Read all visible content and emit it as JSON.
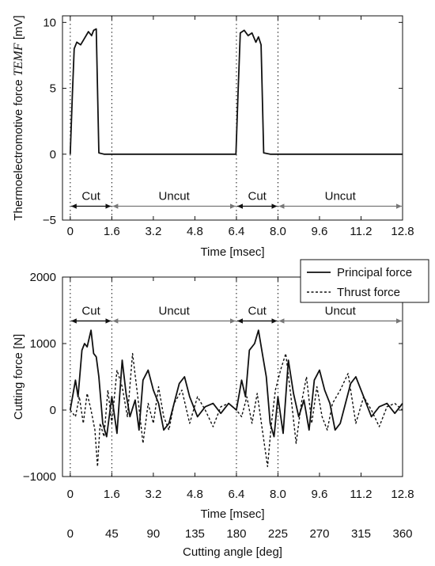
{
  "chart_data": [
    {
      "type": "line",
      "ylabel": "Thermoelectromotive force TEMF [mV]",
      "ylabel_prefix": "Thermoelectromotive force ",
      "ylabel_symbol": "TEMF",
      "ylabel_suffix": " [mV]",
      "xlabel": "Time [msec]",
      "xlim": [
        -0.3,
        12.8
      ],
      "ylim": [
        -5,
        10.5
      ],
      "xticks": [
        "0",
        "1.6",
        "3.2",
        "4.8",
        "6.4",
        "8.0",
        "9.6",
        "11.2",
        "12.8"
      ],
      "xtick_values": [
        0,
        1.6,
        3.2,
        4.8,
        6.4,
        8.0,
        9.6,
        11.2,
        12.8
      ],
      "yticks": [
        "−5",
        "0",
        "5",
        "10"
      ],
      "ytick_values": [
        -5,
        0,
        5,
        10
      ],
      "grid": false,
      "series": [
        {
          "x": [
            0,
            0.08,
            0.15,
            0.25,
            0.4,
            0.55,
            0.7,
            0.82,
            0.9,
            1.0,
            1.1,
            1.3,
            1.6,
            3.2,
            4.8,
            6.3,
            6.38,
            6.46,
            6.55,
            6.7,
            6.85,
            7.0,
            7.15,
            7.25,
            7.35,
            7.45,
            7.7,
            8.0,
            9.6,
            11.2,
            12.8
          ],
          "y": [
            0,
            4.5,
            8.0,
            8.5,
            8.3,
            8.8,
            9.3,
            9.0,
            9.4,
            9.5,
            0.1,
            0,
            0,
            0,
            0,
            0,
            0,
            4.5,
            9.2,
            9.4,
            9.0,
            9.2,
            8.5,
            8.9,
            8.3,
            0.1,
            0,
            0,
            0,
            0,
            0
          ]
        }
      ],
      "vlines": [
        0,
        1.6,
        6.4,
        8.0
      ],
      "annotations": [
        {
          "label": "Cut",
          "from": 0,
          "to": 1.6,
          "style": "black"
        },
        {
          "label": "Uncut",
          "from": 1.6,
          "to": 6.4,
          "style": "gray"
        },
        {
          "label": "Cut",
          "from": 6.4,
          "to": 8.0,
          "style": "black"
        },
        {
          "label": "Uncut",
          "from": 8.0,
          "to": 12.8,
          "style": "gray"
        }
      ],
      "annotation_y": -3.95
    },
    {
      "type": "line",
      "ylabel": "Cutting force  [N]",
      "xlabel": "Time [msec]",
      "x2label": "Cutting angle [deg]",
      "xlim": [
        -0.3,
        12.8
      ],
      "ylim": [
        -1000,
        2000
      ],
      "xticks": [
        "0",
        "1.6",
        "3.2",
        "4.8",
        "6.4",
        "8.0",
        "9.6",
        "11.2",
        "12.8"
      ],
      "xtick_values": [
        0,
        1.6,
        3.2,
        4.8,
        6.4,
        8.0,
        9.6,
        11.2,
        12.8
      ],
      "x2ticks": [
        "0",
        "45",
        "90",
        "135",
        "180",
        "225",
        "270",
        "315",
        "360"
      ],
      "yticks": [
        "−1000",
        "0",
        "1000",
        "2000"
      ],
      "ytick_values": [
        -1000,
        0,
        1000,
        2000
      ],
      "grid": false,
      "legend_position": "top-right",
      "series": [
        {
          "name": "Principal force",
          "dash": "solid",
          "x": [
            0,
            0.2,
            0.3,
            0.45,
            0.55,
            0.65,
            0.8,
            0.9,
            1.0,
            1.1,
            1.25,
            1.4,
            1.6,
            1.8,
            2.0,
            2.15,
            2.3,
            2.5,
            2.65,
            2.8,
            3.0,
            3.2,
            3.4,
            3.6,
            3.8,
            4.0,
            4.2,
            4.4,
            4.6,
            4.9,
            5.2,
            5.5,
            5.8,
            6.1,
            6.4,
            6.6,
            6.75,
            6.9,
            7.1,
            7.25,
            7.4,
            7.55,
            7.7,
            7.85,
            8.0,
            8.2,
            8.4,
            8.6,
            8.8,
            9.0,
            9.2,
            9.4,
            9.6,
            9.8,
            10.0,
            10.2,
            10.4,
            10.6,
            10.8,
            11.0,
            11.3,
            11.6,
            11.9,
            12.2,
            12.5,
            12.8
          ],
          "y": [
            0,
            450,
            200,
            900,
            1000,
            950,
            1200,
            850,
            800,
            500,
            -200,
            -400,
            200,
            -350,
            750,
            250,
            -100,
            150,
            -300,
            450,
            600,
            300,
            100,
            -300,
            -200,
            100,
            400,
            500,
            200,
            -100,
            50,
            100,
            -50,
            100,
            0,
            450,
            200,
            900,
            1000,
            1200,
            850,
            500,
            -200,
            -400,
            200,
            -350,
            750,
            250,
            -100,
            150,
            -300,
            450,
            600,
            300,
            100,
            -300,
            -200,
            100,
            400,
            500,
            200,
            -100,
            50,
            100,
            -50,
            100
          ]
        },
        {
          "name": "Thrust force",
          "dash": "dashed",
          "x": [
            0,
            0.2,
            0.35,
            0.5,
            0.65,
            0.8,
            0.95,
            1.05,
            1.15,
            1.3,
            1.45,
            1.6,
            1.8,
            2.0,
            2.2,
            2.4,
            2.6,
            2.8,
            3.0,
            3.2,
            3.4,
            3.6,
            3.8,
            4.0,
            4.3,
            4.6,
            4.9,
            5.2,
            5.5,
            5.8,
            6.1,
            6.4,
            6.6,
            6.8,
            7.0,
            7.2,
            7.4,
            7.6,
            7.75,
            7.9,
            8.1,
            8.3,
            8.5,
            8.7,
            8.9,
            9.1,
            9.3,
            9.5,
            9.7,
            9.9,
            10.1,
            10.4,
            10.7,
            11.0,
            11.3,
            11.6,
            11.9,
            12.2,
            12.5,
            12.8
          ],
          "y": [
            0,
            -100,
            200,
            -200,
            250,
            0,
            -300,
            -850,
            -200,
            -400,
            300,
            -200,
            600,
            350,
            -100,
            850,
            200,
            -500,
            100,
            -200,
            350,
            -100,
            -300,
            100,
            300,
            -200,
            200,
            0,
            -250,
            50,
            100,
            0,
            -100,
            200,
            -200,
            250,
            -300,
            -850,
            -200,
            300,
            600,
            850,
            200,
            -500,
            100,
            500,
            -200,
            350,
            -100,
            -300,
            100,
            300,
            550,
            -200,
            200,
            0,
            -250,
            50,
            100,
            0
          ]
        }
      ],
      "vlines": [
        0,
        1.6,
        6.4,
        8.0
      ],
      "annotations": [
        {
          "label": "Cut",
          "from": 0,
          "to": 1.6,
          "style": "black"
        },
        {
          "label": "Uncut",
          "from": 1.6,
          "to": 6.4,
          "style": "gray"
        },
        {
          "label": "Cut",
          "from": 6.4,
          "to": 8.0,
          "style": "black"
        },
        {
          "label": "Uncut",
          "from": 8.0,
          "to": 12.8,
          "style": "gray"
        }
      ],
      "annotation_y": 1340
    }
  ]
}
